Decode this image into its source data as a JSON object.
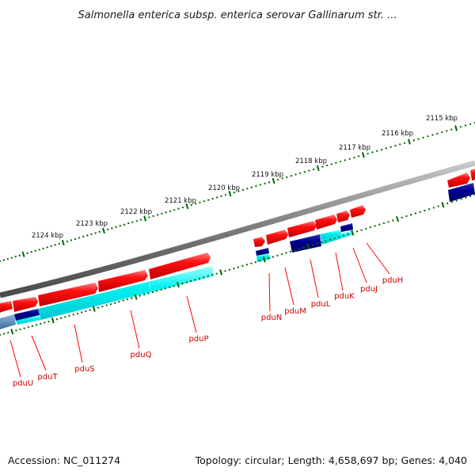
{
  "title": "Salmonella enterica subsp. enterica serovar Gallinarum str. ...",
  "footer": {
    "accession": "Accession: NC_011274",
    "summary": "Topology: circular; Length: 4,658,697 bp; Genes: 4,040"
  },
  "scale_labels": [
    "2115 kbp",
    "2116 kbp",
    "2117 kbp",
    "2118 kbp",
    "2119 kbp",
    "2120 kbp",
    "2121 kbp",
    "2122 kbp",
    "2123 kbp",
    "2124 kbp"
  ],
  "gene_labels": [
    "pduU",
    "pduT",
    "pduS",
    "pduQ",
    "pduP",
    "pduN",
    "pduM",
    "pduL",
    "pduK",
    "pduJ",
    "pduH"
  ],
  "colors": {
    "forward_cds": "#ff0000",
    "cds_feature_navy": "#000080",
    "cds_feature_cyan": "#00ffff",
    "backbone": "#808080",
    "tick": "#006400",
    "gene_label": "#cc0000"
  }
}
